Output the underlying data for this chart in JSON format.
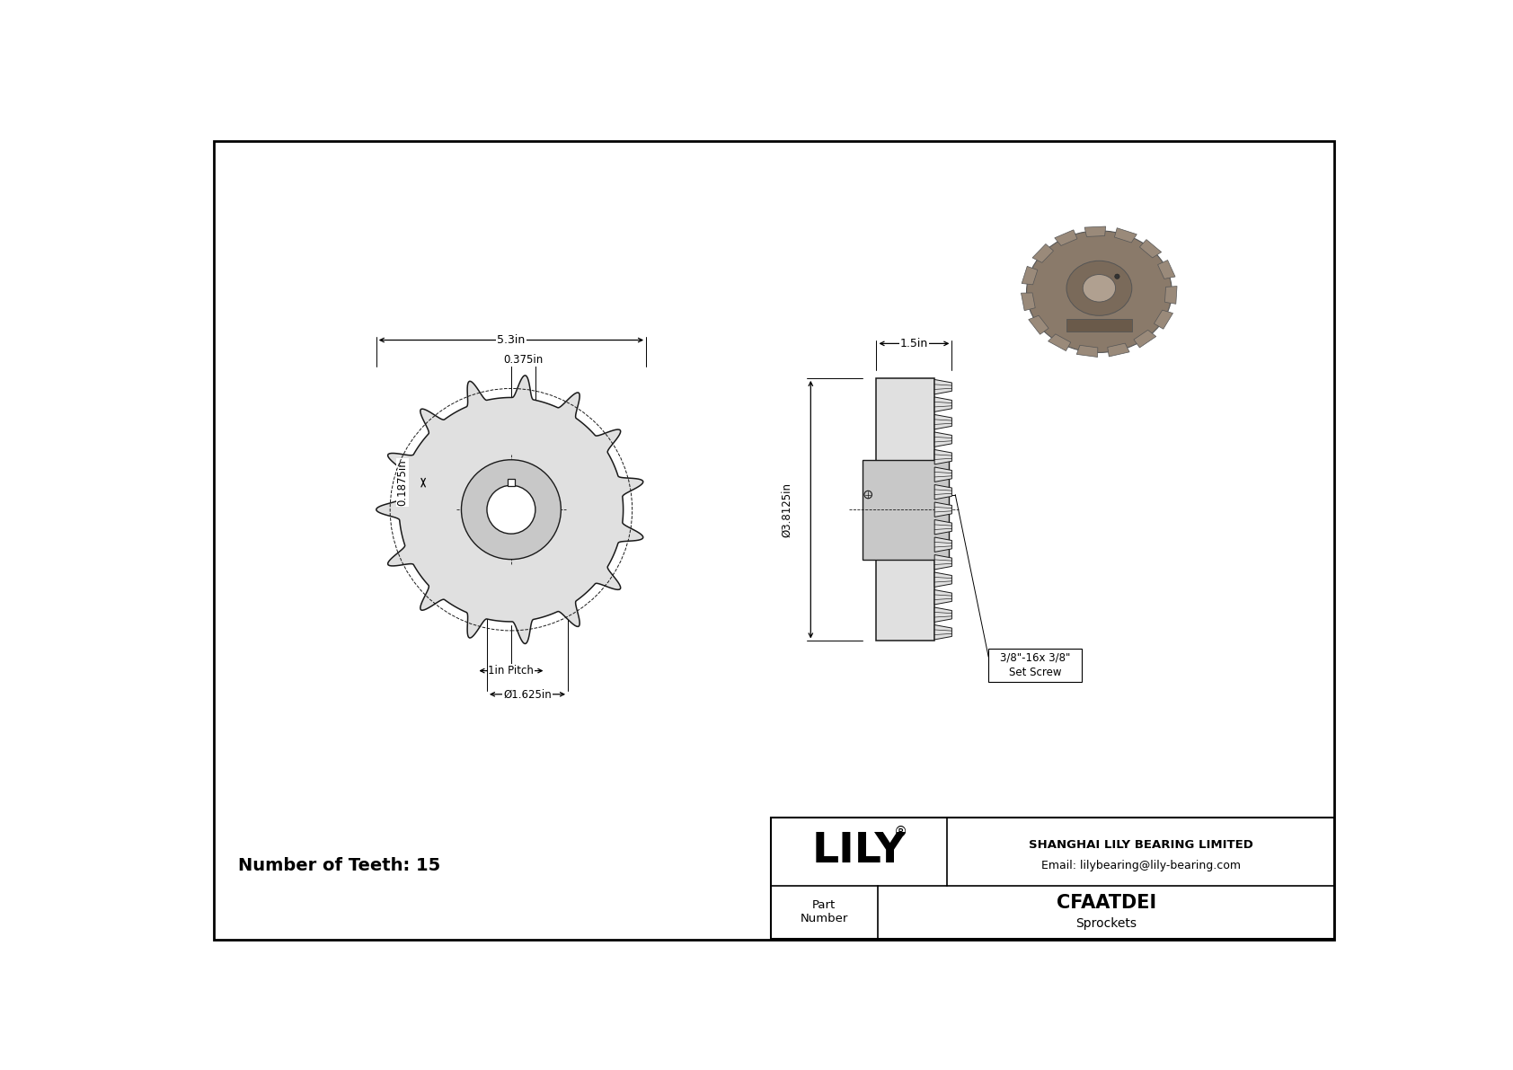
{
  "bg_color": "#ffffff",
  "border_color": "#000000",
  "num_teeth": 15,
  "dim_5_3": "5.3in",
  "dim_0_375": "0.375in",
  "dim_0_1875": "0.1875in",
  "dim_1_5": "1.5in",
  "dim_3_8125": "Ø3.8125in",
  "dim_1_pitch": "1in Pitch",
  "dim_1_625": "Ø1.625in",
  "dim_set_screw_line1": "3/8\"-16x 3/8\"",
  "dim_set_screw_line2": "Set Screw",
  "company_name": "LILY",
  "company_reg": "®",
  "company_info_line1": "SHANGHAI LILY BEARING LIMITED",
  "company_info_line2": "Email: lilybearing@lily-bearing.com",
  "part_label": "Part\nNumber",
  "part_number": "CFAATDEI",
  "part_type": "Sprockets",
  "num_teeth_label": "Number of Teeth: 15",
  "line_color": "#1a1a1a",
  "dim_color": "#000000",
  "sprocket_fill": "#e0e0e0",
  "hub_fill": "#c8c8c8",
  "iso_body_color": "#8a7a6a",
  "iso_hub_color": "#7a6a5a",
  "iso_tooth_color": "#9a8a7a",
  "iso_bore_color": "#b0a090"
}
